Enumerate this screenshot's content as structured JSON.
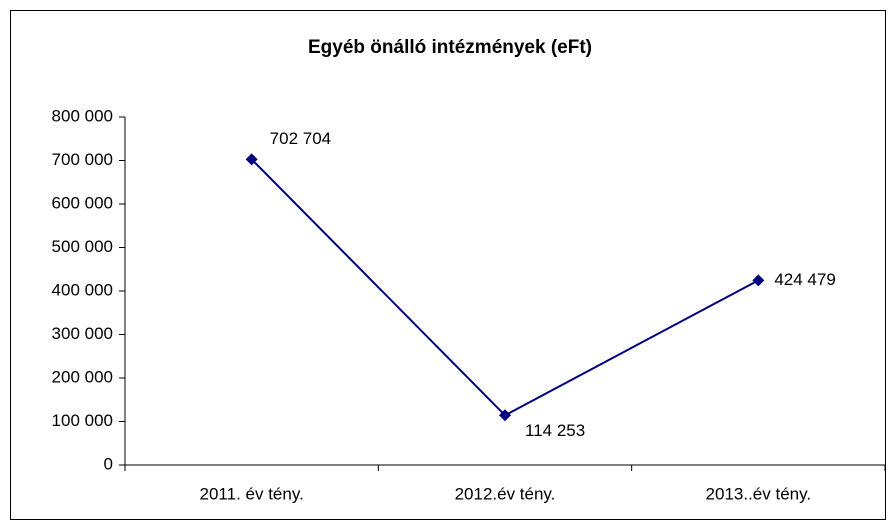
{
  "chart_data": {
    "type": "line",
    "title": "Egyéb önálló intézmények (eFt)",
    "categories": [
      "2011. év tény.",
      "2012.év tény.",
      "2013..év tény."
    ],
    "values": [
      702704,
      114253,
      424479
    ],
    "value_labels": [
      "702 704",
      "114 253",
      "424 479"
    ],
    "color": "#000080",
    "ylim": [
      0,
      800000
    ],
    "yticks": [
      {
        "value": 0,
        "label": "0"
      },
      {
        "value": 100000,
        "label": "100 000"
      },
      {
        "value": 200000,
        "label": "200 000"
      },
      {
        "value": 300000,
        "label": "300 000"
      },
      {
        "value": 400000,
        "label": "400 000"
      },
      {
        "value": 500000,
        "label": "500 000"
      },
      {
        "value": 600000,
        "label": "600 000"
      },
      {
        "value": 700000,
        "label": "700 000"
      },
      {
        "value": 800000,
        "label": "800 000"
      }
    ],
    "grid": false
  }
}
